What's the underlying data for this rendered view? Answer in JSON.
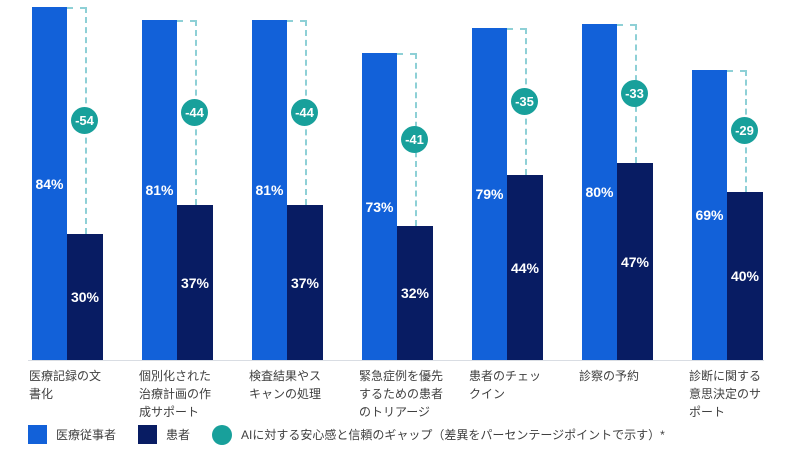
{
  "chart_data": {
    "type": "bar",
    "categories": [
      "医療記録の文\n書化",
      "個別化された\n治療計画の作\n成サポート",
      "検査結果やス\nキャンの処理",
      "緊急症例を優先\nするための患者\nのトリアージ",
      "患者のチェッ\nクイン",
      "診察の予約",
      "診断に関する\n意思決定のサ\nポート"
    ],
    "series": [
      {
        "name": "医療従事者",
        "values": [
          84,
          81,
          81,
          73,
          79,
          80,
          69
        ],
        "color": "#1261d9"
      },
      {
        "name": "患者",
        "values": [
          30,
          37,
          37,
          32,
          44,
          47,
          40
        ],
        "color": "#081c63"
      }
    ],
    "value_suffix": "%",
    "gap_markers": {
      "values": [
        -54,
        -44,
        -44,
        -41,
        -35,
        -33,
        -29
      ],
      "color": "#18a09b",
      "connector_color": "#8ed0d6",
      "label": "AIに対する安心感と信頼のギャップ（差異をパーセンテージポイントで示す）*"
    },
    "ylim": [
      0,
      100
    ],
    "grid": false,
    "legend_position": "bottom"
  },
  "legend": {
    "items": [
      {
        "label": "医療従事者",
        "swatch": "square",
        "color": "#1261d9"
      },
      {
        "label": "患者",
        "swatch": "square",
        "color": "#081c63"
      },
      {
        "label": "AIに対する安心感と信頼のギャップ（差異をパーセンテージポイントで示す）*",
        "swatch": "circle",
        "color": "#18a09b"
      }
    ]
  }
}
